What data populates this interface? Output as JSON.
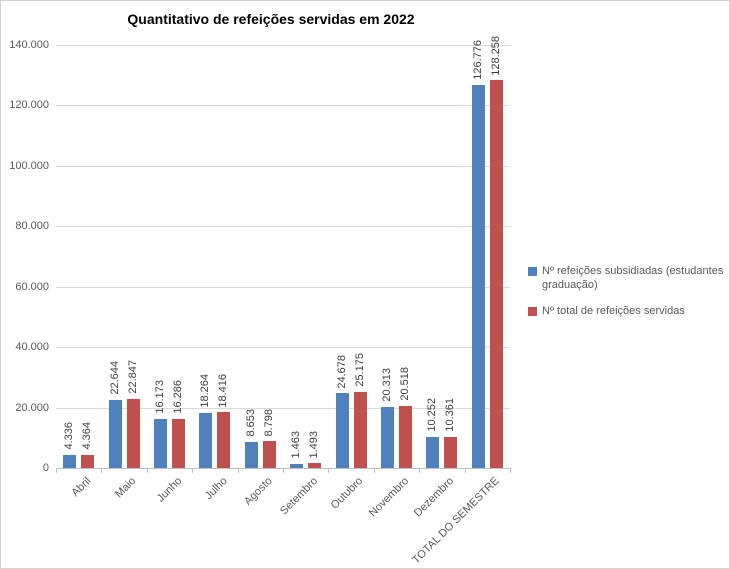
{
  "title": "Quantitativo de refeições servidas em 2022",
  "chart_data": {
    "type": "bar",
    "title": "Quantitativo de refeições servidas em 2022",
    "categories": [
      "Abril",
      "Maio",
      "Junho",
      "Julho",
      "Agosto",
      "Setembro",
      "Outubro",
      "Novembro",
      "Dezembro",
      "TOTAL DO SEMESTRE"
    ],
    "series": [
      {
        "name": "Nº refeições subsidiadas (estudantes graduação)",
        "color": "#4F81BD",
        "values": [
          4336,
          22644,
          16173,
          18264,
          8653,
          1463,
          24678,
          20313,
          10252,
          126776
        ],
        "labels": [
          "4.336",
          "22.644",
          "16.173",
          "18.264",
          "8.653",
          "1.463",
          "24.678",
          "20.313",
          "10.252",
          "126.776"
        ]
      },
      {
        "name": "Nº total de refeições servidas",
        "color": "#C0504D",
        "values": [
          4364,
          22847,
          16286,
          18416,
          8798,
          1493,
          25175,
          20518,
          10361,
          128258
        ],
        "labels": [
          "4.364",
          "22.847",
          "16.286",
          "18.416",
          "8.798",
          "1.493",
          "25.175",
          "20.518",
          "10.361",
          "128.258"
        ]
      }
    ],
    "ylim": [
      0,
      140000
    ],
    "ytick_step": 20000,
    "ytick_labels": [
      "0",
      "20.000",
      "40.000",
      "60.000",
      "80.000",
      "100.000",
      "120.000",
      "140.000"
    ],
    "grid": true,
    "legend_position": "right",
    "gridline_color": "#d9d9d9",
    "axis_color": "#bfbfbf",
    "tick_label_color": "#595959",
    "value_label_color": "#3f3f3f"
  }
}
